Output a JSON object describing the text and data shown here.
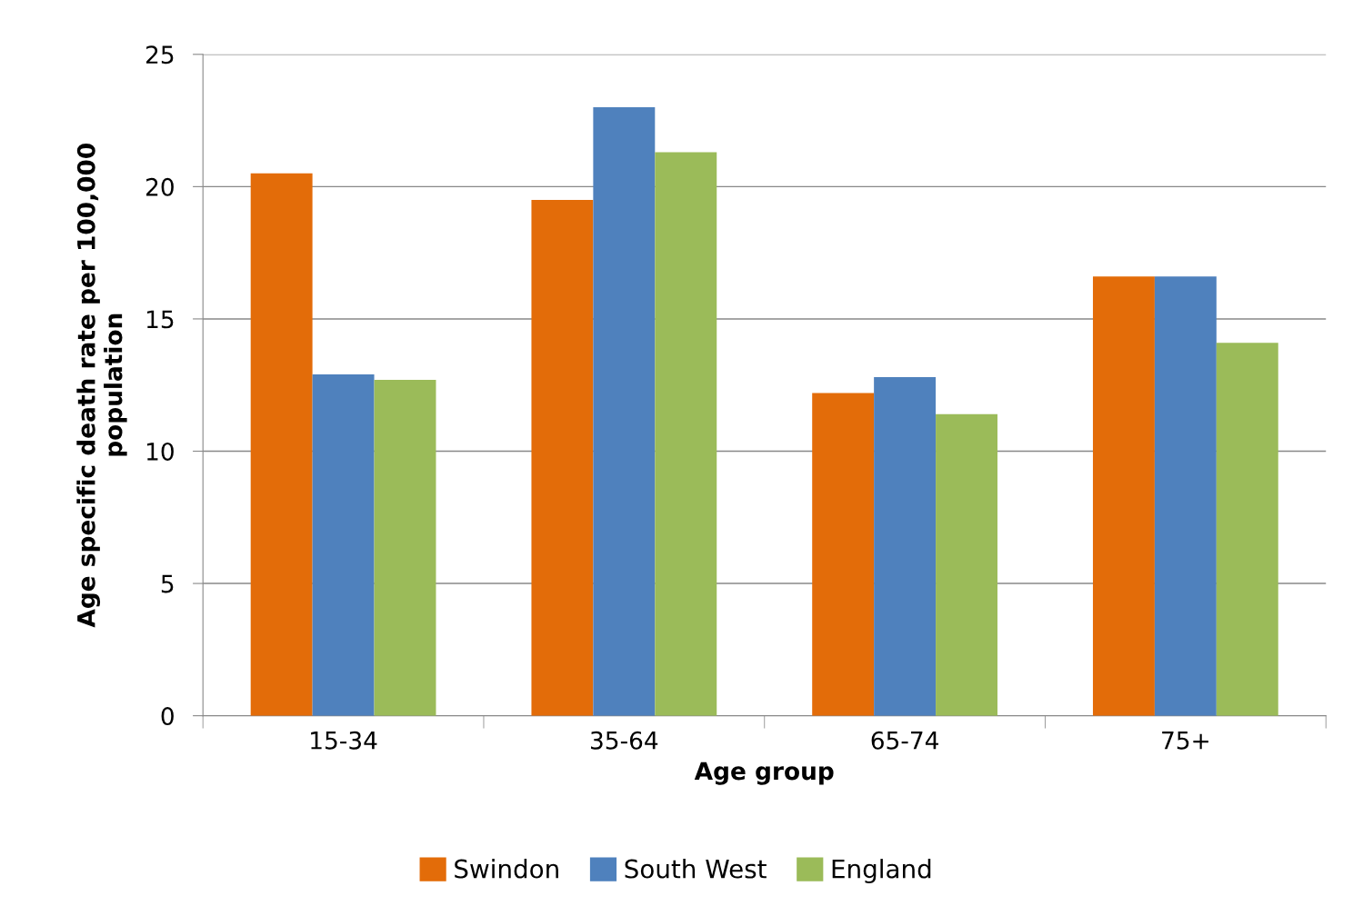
{
  "chart_data": {
    "type": "bar",
    "xlabel": "Age group",
    "ylabel": "Age specific death rate per 100,000\npopulation",
    "categories": [
      "15-34",
      "35-64",
      "65-74",
      "75+"
    ],
    "series": [
      {
        "name": "Swindon",
        "color": "#e36c09",
        "values": [
          20.5,
          19.5,
          12.2,
          16.6
        ]
      },
      {
        "name": "South West",
        "color": "#4f81bd",
        "values": [
          12.9,
          23.0,
          12.8,
          16.6
        ]
      },
      {
        "name": "England",
        "color": "#9bbb59",
        "values": [
          12.7,
          21.3,
          11.4,
          14.1
        ]
      }
    ],
    "ylim": [
      0,
      25
    ],
    "yticks": [
      0,
      5,
      10,
      15,
      20,
      25
    ],
    "grid": "y",
    "legend": "bottom"
  }
}
